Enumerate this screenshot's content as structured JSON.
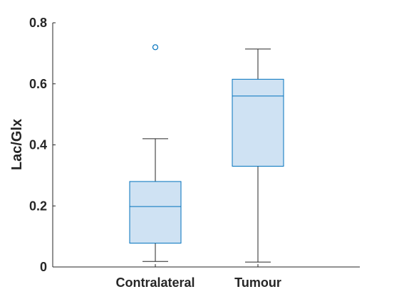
{
  "chart_data": {
    "type": "box",
    "title": "",
    "xlabel": "",
    "ylabel": "Lac/Glx",
    "ylim": [
      0,
      0.8
    ],
    "yticks": [
      0,
      0.2,
      0.4,
      0.6,
      0.8
    ],
    "ytick_labels": [
      "0",
      "0.2",
      "0.4",
      "0.6",
      "0.8"
    ],
    "categories": [
      "Contralateral",
      "Tumour"
    ],
    "boxes": [
      {
        "category": "Contralateral",
        "whisker_low": 0.018,
        "q1": 0.078,
        "median": 0.198,
        "q3": 0.28,
        "whisker_high": 0.42,
        "outliers": [
          0.72
        ]
      },
      {
        "category": "Tumour",
        "whisker_low": 0.016,
        "q1": 0.33,
        "median": 0.56,
        "q3": 0.615,
        "whisker_high": 0.714,
        "outliers": []
      }
    ],
    "grid": false,
    "colors": {
      "box_fill": "#cfe2f3",
      "box_edge": "#0072bd",
      "whisker": "#262626",
      "axis": "#262626",
      "outlier": "#0072bd"
    }
  }
}
